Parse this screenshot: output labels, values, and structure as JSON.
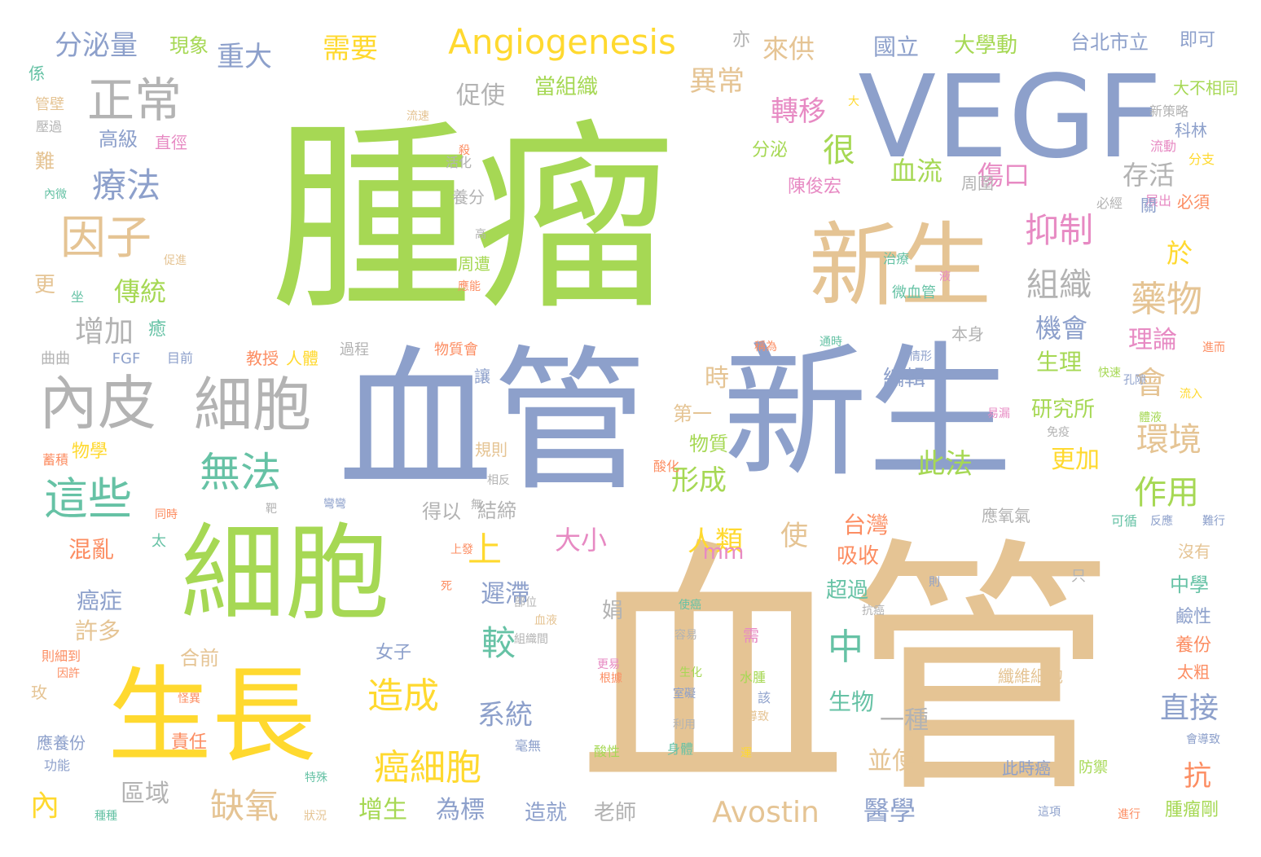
{
  "palette": {
    "green": "#a6d854",
    "blue": "#8da0cb",
    "tan": "#e5c494",
    "yellow": "#ffd92f",
    "gray": "#b3b3b3",
    "teal": "#66c2a5",
    "orange": "#fc8d62",
    "pink": "#e78ac3"
  },
  "words": [
    {
      "text": "腫瘤",
      "color": "#a6d854"
    },
    {
      "text": "血管",
      "color": "#e5c494"
    },
    {
      "text": "血管",
      "color": "#8da0cb"
    },
    {
      "text": "新生",
      "color": "#8da0cb"
    },
    {
      "text": "VEGF",
      "color": "#8da0cb"
    },
    {
      "text": "新生",
      "color": "#e5c494"
    },
    {
      "text": "細胞",
      "color": "#a6d854"
    },
    {
      "text": "生長",
      "color": "#ffd92f"
    },
    {
      "text": "內皮",
      "color": "#b3b3b3"
    },
    {
      "text": "細胞",
      "color": "#b3b3b3"
    },
    {
      "text": "Angiogenesis",
      "color": "#ffd92f"
    },
    {
      "text": "正常",
      "color": "#b3b3b3"
    },
    {
      "text": "因子",
      "color": "#e5c494"
    },
    {
      "text": "這些",
      "color": "#66c2a5"
    },
    {
      "text": "無法",
      "color": "#66c2a5"
    },
    {
      "text": "造成",
      "color": "#ffd92f"
    },
    {
      "text": "癌細胞",
      "color": "#ffd92f"
    },
    {
      "text": "缺氧",
      "color": "#e5c494"
    },
    {
      "text": "組織",
      "color": "#b3b3b3"
    },
    {
      "text": "抑制",
      "color": "#e78ac3"
    },
    {
      "text": "藥物",
      "color": "#e5c494"
    },
    {
      "text": "環境",
      "color": "#e5c494"
    },
    {
      "text": "作用",
      "color": "#a6d854"
    },
    {
      "text": "Avostin",
      "color": "#e5c494"
    },
    {
      "text": "療法",
      "color": "#8da0cb"
    },
    {
      "text": "分泌量",
      "color": "#8da0cb"
    },
    {
      "text": "重大",
      "color": "#8da0cb"
    },
    {
      "text": "需要",
      "color": "#ffd92f"
    },
    {
      "text": "存活",
      "color": "#b3b3b3"
    },
    {
      "text": "血流",
      "color": "#a6d854"
    },
    {
      "text": "傷口",
      "color": "#e78ac3"
    },
    {
      "text": "轉移",
      "color": "#e78ac3"
    },
    {
      "text": "異常",
      "color": "#e5c494"
    },
    {
      "text": "來供",
      "color": "#e5c494"
    },
    {
      "text": "促使",
      "color": "#b3b3b3"
    },
    {
      "text": "當組織",
      "color": "#a6d854"
    },
    {
      "text": "國立",
      "color": "#8da0cb"
    },
    {
      "text": "大學動",
      "color": "#a6d854"
    },
    {
      "text": "台北市立",
      "color": "#8da0cb"
    },
    {
      "text": "即可",
      "color": "#8da0cb"
    },
    {
      "text": "現象",
      "color": "#a6d854"
    },
    {
      "text": "亦",
      "color": "#b3b3b3"
    },
    {
      "text": "高級",
      "color": "#8da0cb"
    },
    {
      "text": "直徑",
      "color": "#e78ac3"
    },
    {
      "text": "傳統",
      "color": "#a6d854"
    },
    {
      "text": "增加",
      "color": "#b3b3b3"
    },
    {
      "text": "會",
      "color": "#e5c494"
    },
    {
      "text": "機會",
      "color": "#8da0cb"
    },
    {
      "text": "理論",
      "color": "#e78ac3"
    },
    {
      "text": "生理",
      "color": "#a6d854"
    },
    {
      "text": "研究所",
      "color": "#a6d854"
    },
    {
      "text": "編輯",
      "color": "#8da0cb"
    },
    {
      "text": "此法",
      "color": "#a6d854"
    },
    {
      "text": "時",
      "color": "#e5c494"
    },
    {
      "text": "第一",
      "color": "#e5c494"
    },
    {
      "text": "物質",
      "color": "#a6d854"
    },
    {
      "text": "形成",
      "color": "#a6d854"
    },
    {
      "text": "人類",
      "color": "#ffd92f"
    },
    {
      "text": "mm",
      "color": "#e78ac3"
    },
    {
      "text": "使",
      "color": "#e5c494"
    },
    {
      "text": "大小",
      "color": "#e78ac3"
    },
    {
      "text": "上",
      "color": "#ffd92f"
    },
    {
      "text": "遲滯",
      "color": "#8da0cb"
    },
    {
      "text": "較",
      "color": "#66c2a5"
    },
    {
      "text": "中",
      "color": "#66c2a5"
    },
    {
      "text": "台灣",
      "color": "#fc8d62"
    },
    {
      "text": "吸收",
      "color": "#fc8d62"
    },
    {
      "text": "超過",
      "color": "#66c2a5"
    },
    {
      "text": "系統",
      "color": "#8da0cb"
    },
    {
      "text": "一種",
      "color": "#b3b3b3"
    },
    {
      "text": "並使",
      "color": "#e5c494"
    },
    {
      "text": "醫學",
      "color": "#8da0cb"
    },
    {
      "text": "生物",
      "color": "#66c2a5"
    },
    {
      "text": "直接",
      "color": "#8da0cb"
    },
    {
      "text": "抗",
      "color": "#fc8d62"
    },
    {
      "text": "更加",
      "color": "#ffd92f"
    },
    {
      "text": "中學",
      "color": "#66c2a5"
    },
    {
      "text": "鹼性",
      "color": "#8da0cb"
    },
    {
      "text": "養份",
      "color": "#fc8d62"
    },
    {
      "text": "太粗",
      "color": "#fc8d62"
    },
    {
      "text": "纖維細胞",
      "color": "#e5c494"
    },
    {
      "text": "此時癌",
      "color": "#8da0cb"
    },
    {
      "text": "防禦",
      "color": "#a6d854"
    },
    {
      "text": "腫瘤剛",
      "color": "#a6d854"
    },
    {
      "text": "增生",
      "color": "#a6d854"
    },
    {
      "text": "為標",
      "color": "#8da0cb"
    },
    {
      "text": "造就",
      "color": "#8da0cb"
    },
    {
      "text": "老師",
      "color": "#b3b3b3"
    },
    {
      "text": "區域",
      "color": "#b3b3b3"
    },
    {
      "text": "內",
      "color": "#ffd92f"
    },
    {
      "text": "混亂",
      "color": "#fc8d62"
    },
    {
      "text": "癌症",
      "color": "#8da0cb"
    },
    {
      "text": "許多",
      "color": "#e5c494"
    },
    {
      "text": "合前",
      "color": "#e5c494"
    },
    {
      "text": "責任",
      "color": "#fc8d62"
    },
    {
      "text": "女子",
      "color": "#8da0cb"
    },
    {
      "text": "教授",
      "color": "#fc8d62"
    },
    {
      "text": "人體",
      "color": "#ffd92f"
    },
    {
      "text": "物學",
      "color": "#ffd92f"
    },
    {
      "text": "得以",
      "color": "#b3b3b3"
    },
    {
      "text": "結締",
      "color": "#b3b3b3"
    },
    {
      "text": "應氧氣",
      "color": "#b3b3b3"
    },
    {
      "text": "更",
      "color": "#e5c494"
    },
    {
      "text": "難",
      "color": "#e5c494"
    },
    {
      "text": "很",
      "color": "#a6d854"
    },
    {
      "text": "於",
      "color": "#ffd92f"
    },
    {
      "text": "周圍",
      "color": "#b3b3b3"
    },
    {
      "text": "陳俊宏",
      "color": "#e78ac3"
    },
    {
      "text": "養分",
      "color": "#b3b3b3"
    },
    {
      "text": "分泌",
      "color": "#a6d854"
    },
    {
      "text": "周遭",
      "color": "#a6d854"
    },
    {
      "text": "科林",
      "color": "#8da0cb"
    },
    {
      "text": "大不相同",
      "color": "#a6d854"
    },
    {
      "text": "新策略",
      "color": "#b3b3b3"
    },
    {
      "text": "流動",
      "color": "#e78ac3"
    },
    {
      "text": "分支",
      "color": "#ffd92f"
    },
    {
      "text": "必須",
      "color": "#fc8d62"
    },
    {
      "text": "展出",
      "color": "#e78ac3"
    },
    {
      "text": "必經",
      "color": "#b3b3b3"
    },
    {
      "text": "關",
      "color": "#8da0cb"
    },
    {
      "text": "係",
      "color": "#66c2a5"
    },
    {
      "text": "管壁",
      "color": "#e5c494"
    },
    {
      "text": "壓過",
      "color": "#b3b3b3"
    },
    {
      "text": "內微",
      "color": "#66c2a5"
    },
    {
      "text": "促進",
      "color": "#e5c494"
    },
    {
      "text": "坐",
      "color": "#66c2a5"
    },
    {
      "text": "癒",
      "color": "#66c2a5"
    },
    {
      "text": "曲曲",
      "color": "#b3b3b3"
    },
    {
      "text": "FGF",
      "color": "#8da0cb"
    },
    {
      "text": "目前",
      "color": "#8da0cb"
    },
    {
      "text": "過程",
      "color": "#b3b3b3"
    },
    {
      "text": "物質會",
      "color": "#fc8d62"
    },
    {
      "text": "讓",
      "color": "#8da0cb"
    },
    {
      "text": "酸化",
      "color": "#fc8d62"
    },
    {
      "text": "規則",
      "color": "#e5c494"
    },
    {
      "text": "相反",
      "color": "#b3b3b3"
    },
    {
      "text": "蓄積",
      "color": "#fc8d62"
    },
    {
      "text": "同時",
      "color": "#fc8d62"
    },
    {
      "text": "靶",
      "color": "#b3b3b3"
    },
    {
      "text": "彎彎",
      "color": "#8da0cb"
    },
    {
      "text": "無",
      "color": "#b3b3b3"
    },
    {
      "text": "太",
      "color": "#66c2a5"
    },
    {
      "text": "上發",
      "color": "#fc8d62"
    },
    {
      "text": "死",
      "color": "#fc8d62"
    },
    {
      "text": "部位",
      "color": "#b3b3b3"
    },
    {
      "text": "血液",
      "color": "#e5c494"
    },
    {
      "text": "組織間",
      "color": "#b3b3b3"
    },
    {
      "text": "娟",
      "color": "#b3b3b3"
    },
    {
      "text": "使癌",
      "color": "#66c2a5"
    },
    {
      "text": "容易",
      "color": "#b3b3b3"
    },
    {
      "text": "需",
      "color": "#e78ac3"
    },
    {
      "text": "水腫",
      "color": "#a6d854"
    },
    {
      "text": "該",
      "color": "#8da0cb"
    },
    {
      "text": "更易",
      "color": "#e78ac3"
    },
    {
      "text": "根據",
      "color": "#fc8d62"
    },
    {
      "text": "生化",
      "color": "#a6d854"
    },
    {
      "text": "室礙",
      "color": "#8da0cb"
    },
    {
      "text": "利用",
      "color": "#b3b3b3"
    },
    {
      "text": "導致",
      "color": "#e5c494"
    },
    {
      "text": "酸性",
      "color": "#a6d854"
    },
    {
      "text": "身體",
      "color": "#66c2a5"
    },
    {
      "text": "運",
      "color": "#ffd92f"
    },
    {
      "text": "毫無",
      "color": "#8da0cb"
    },
    {
      "text": "則細到",
      "color": "#fc8d62"
    },
    {
      "text": "因許",
      "color": "#fc8d62"
    },
    {
      "text": "玫",
      "color": "#e5c494"
    },
    {
      "text": "怪異",
      "color": "#fc8d62"
    },
    {
      "text": "應養份",
      "color": "#8da0cb"
    },
    {
      "text": "功能",
      "color": "#8da0cb"
    },
    {
      "text": "特殊",
      "color": "#66c2a5"
    },
    {
      "text": "種種",
      "color": "#66c2a5"
    },
    {
      "text": "狀況",
      "color": "#e5c494"
    },
    {
      "text": "活化",
      "color": "#b3b3b3"
    },
    {
      "text": "殺",
      "color": "#fc8d62"
    },
    {
      "text": "高",
      "color": "#b3b3b3"
    },
    {
      "text": "治療",
      "color": "#66c2a5"
    },
    {
      "text": "液",
      "color": "#e78ac3"
    },
    {
      "text": "應能",
      "color": "#fc8d62"
    },
    {
      "text": "微血管",
      "color": "#66c2a5"
    },
    {
      "text": "本身",
      "color": "#b3b3b3"
    },
    {
      "text": "情形",
      "color": "#8da0cb"
    },
    {
      "text": "通時",
      "color": "#66c2a5"
    },
    {
      "text": "稱為",
      "color": "#fc8d62"
    },
    {
      "text": "快速",
      "color": "#a6d854"
    },
    {
      "text": "孔隙",
      "color": "#8da0cb"
    },
    {
      "text": "流入",
      "color": "#ffd92f"
    },
    {
      "text": "進而",
      "color": "#fc8d62"
    },
    {
      "text": "易漏",
      "color": "#e78ac3"
    },
    {
      "text": "免疫",
      "color": "#b3b3b3"
    },
    {
      "text": "體液",
      "color": "#a6d854"
    },
    {
      "text": "可循",
      "color": "#66c2a5"
    },
    {
      "text": "反應",
      "color": "#8da0cb"
    },
    {
      "text": "難行",
      "color": "#8da0cb"
    },
    {
      "text": "沒有",
      "color": "#e5c494"
    },
    {
      "text": "則",
      "color": "#8da0cb"
    },
    {
      "text": "只",
      "color": "#b3b3b3"
    },
    {
      "text": "抗癌",
      "color": "#b3b3b3"
    },
    {
      "text": "會導致",
      "color": "#8da0cb"
    },
    {
      "text": "這項",
      "color": "#8da0cb"
    },
    {
      "text": "進行",
      "color": "#fc8d62"
    },
    {
      "text": "流速",
      "color": "#e5c494"
    },
    {
      "text": "大",
      "color": "#ffd92f"
    }
  ]
}
